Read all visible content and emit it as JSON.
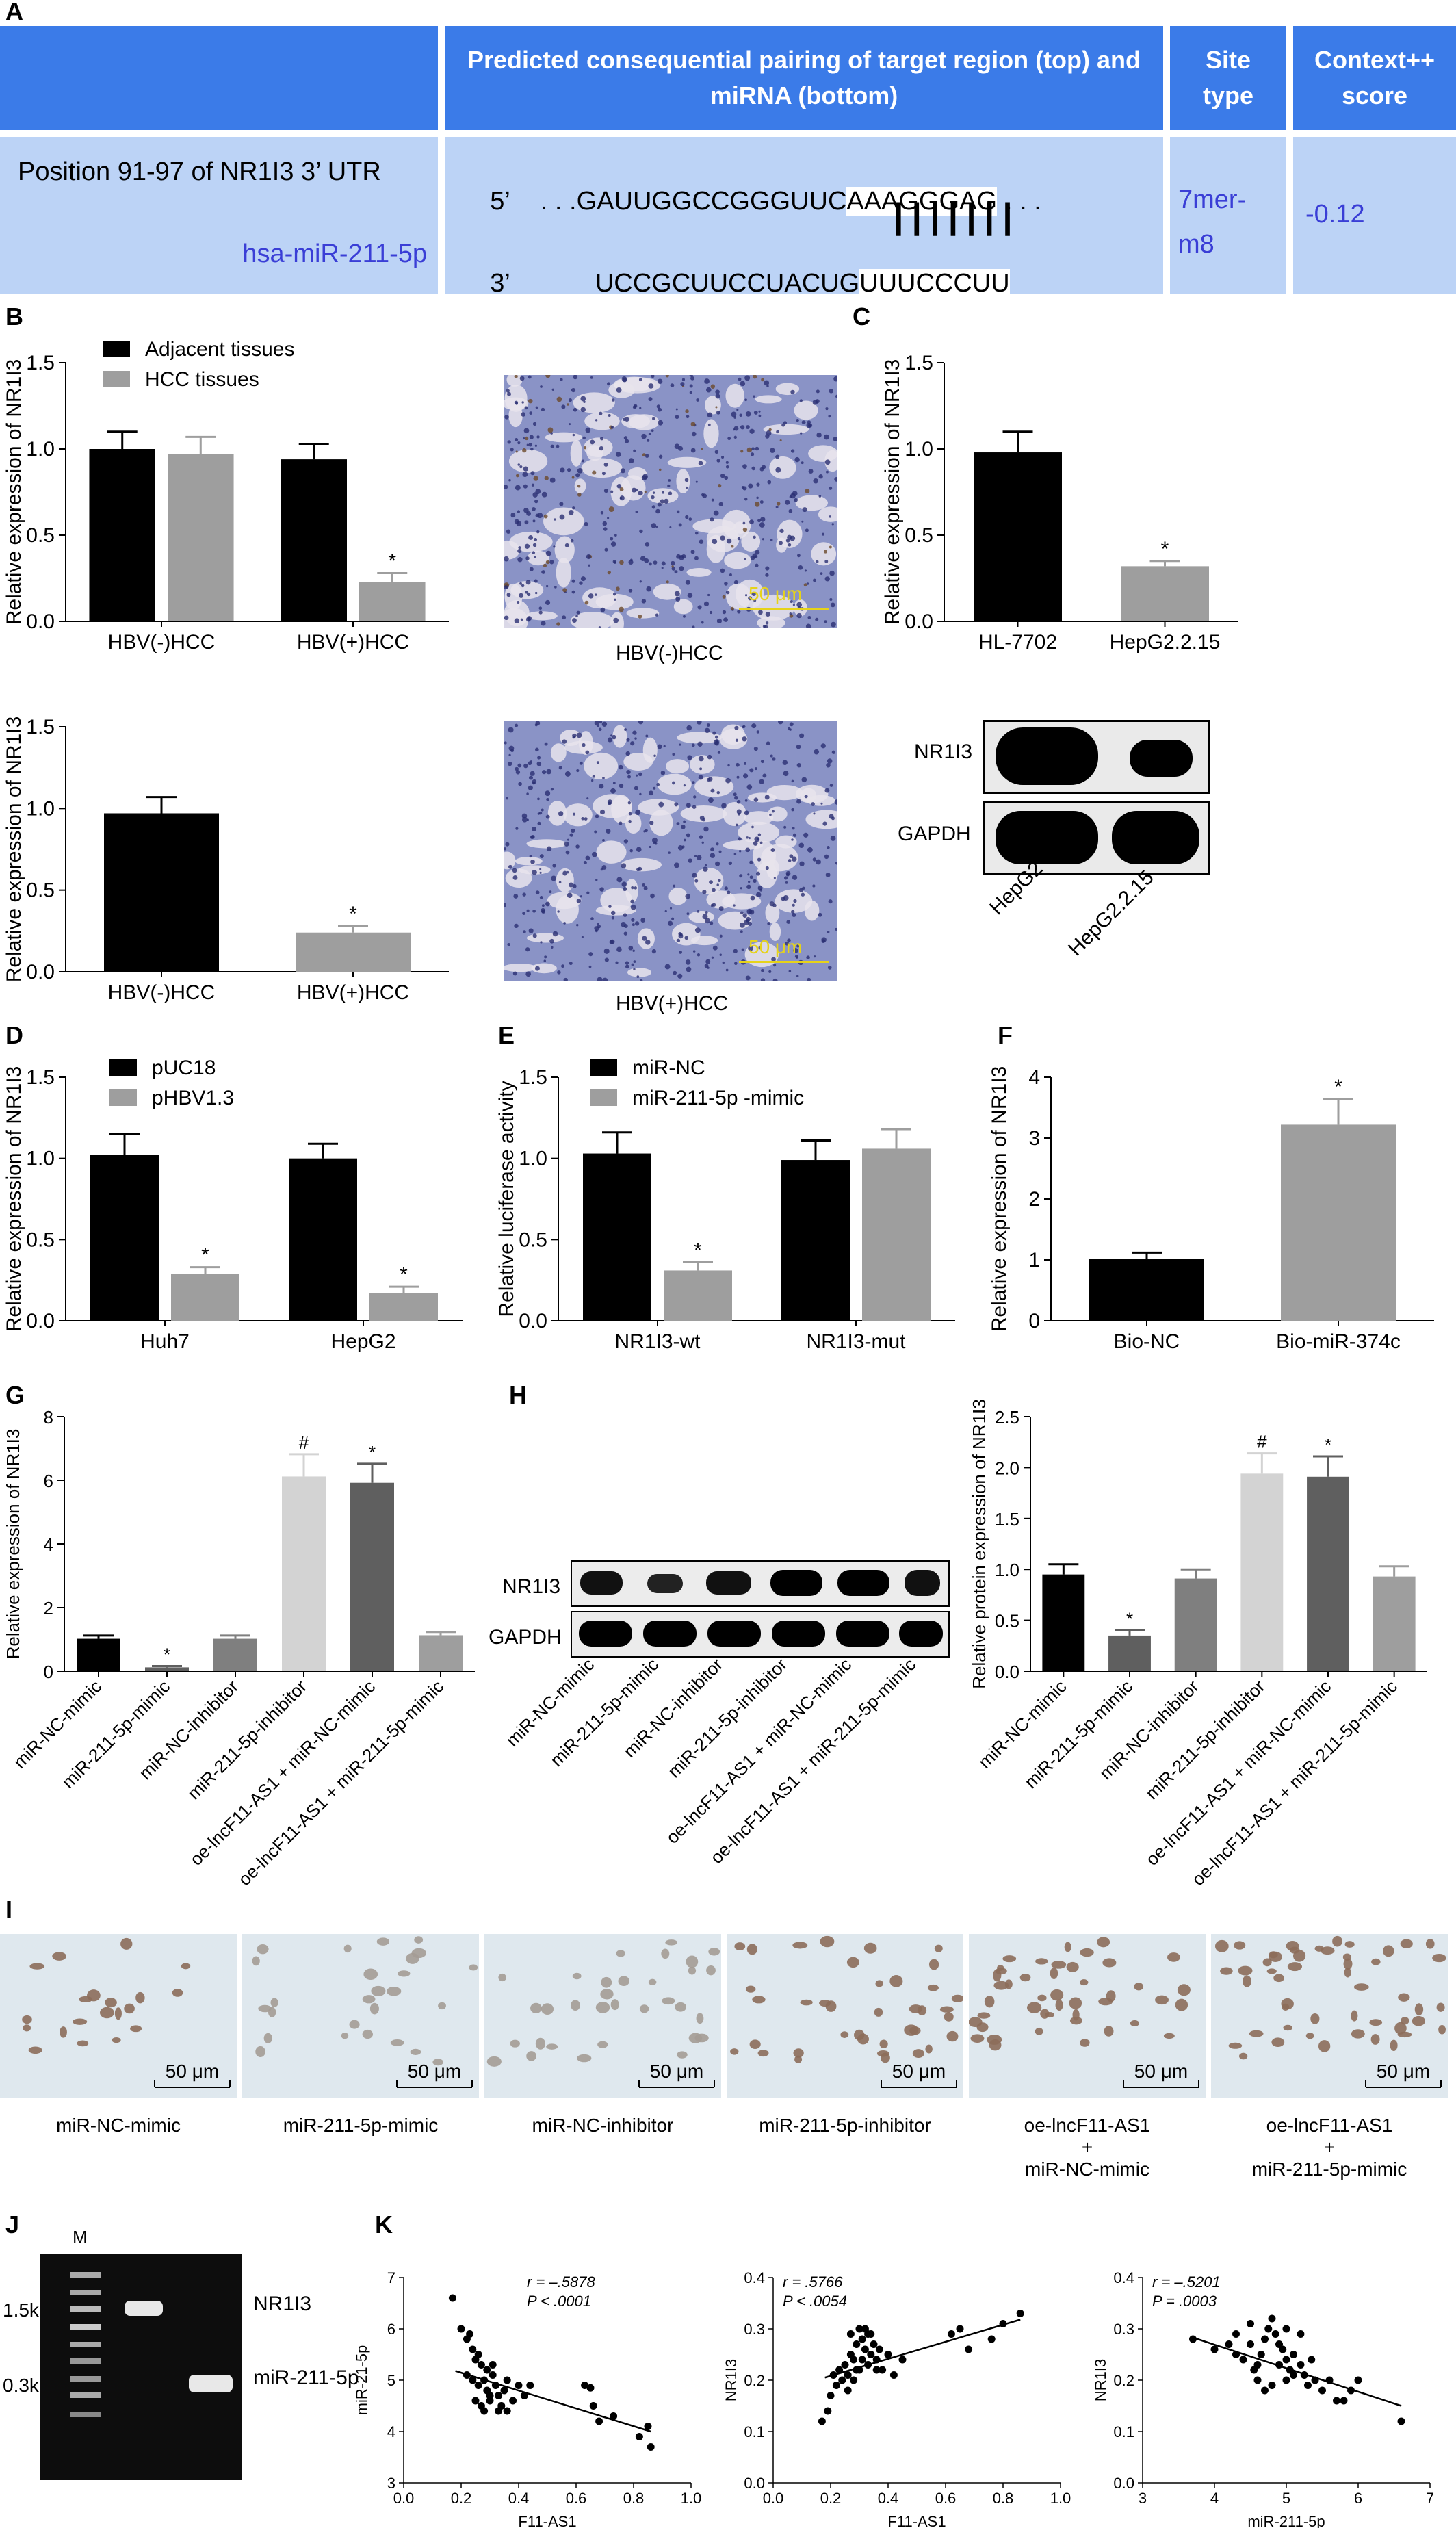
{
  "panel_letters": {
    "A": "A",
    "B": "B",
    "C": "C",
    "D": "D",
    "E": "E",
    "F": "F",
    "G": "G",
    "H": "H",
    "I": "I",
    "J": "J",
    "K": "K"
  },
  "table": {
    "headers": [
      "Predicted consequential pairing of target region (top) and miRNA (bottom)",
      "Site type",
      "Context++ score"
    ],
    "position_label": "Position 91-97 of NR1I3 3’ UTR",
    "mirna_label": "hsa-miR-211-5p",
    "top_prime": "5’",
    "top_seq_prefix": ". . .GAUUGGCCGGGUUC",
    "top_seq_highlight": "AAAGGGAG",
    "top_seq_suffix": ". . .",
    "pairing_bars": "|||||||",
    "bottom_prime": "3’",
    "bottom_seq_prefix": "UCCGCUUCCUACUG",
    "bottom_seq_highlight": "UUUCCCU",
    "bottom_seq_suffix": "U",
    "site_type": "7mer-m8",
    "context_score": "-0.12"
  },
  "micrographs": {
    "b_top_caption": "HBV(-)HCC",
    "b_bottom_caption": "HBV(+)HCC",
    "scale_text": "50 μm"
  },
  "western_c": {
    "bands": [
      "NR1I3",
      "GAPDH"
    ],
    "lanes": [
      "HepG2",
      "HepG2.2.15"
    ]
  },
  "western_h": {
    "bands": [
      "NR1I3",
      "GAPDH"
    ]
  },
  "panel_i": {
    "captions": [
      [
        "miR-NC-mimic"
      ],
      [
        "miR-211-5p-mimic"
      ],
      [
        "miR-NC-inhibitor"
      ],
      [
        "miR-211-5p-inhibitor"
      ],
      [
        "oe-lncF11-AS1",
        "+",
        "miR-NC-mimic"
      ],
      [
        "oe-lncF11-AS1",
        "+",
        "miR-211-5p-mimic"
      ]
    ],
    "scale_text": "50 μm"
  },
  "panel_j": {
    "marker": "M",
    "ladder": [
      "1.5k",
      "0.3k"
    ],
    "bands": [
      "NR1I3",
      "miR-211-5p"
    ]
  },
  "colors": {
    "black": "#000000",
    "gray": "#9e9e9e",
    "light": "#d3d3d3",
    "dark": "#5f5f5f",
    "mid": "#7f7f7f",
    "header_blue": "#3b7be8",
    "cell_blue": "#bcd3f6",
    "text_blue": "#3a3ed6"
  },
  "chart_data": [
    {
      "id": "B1",
      "type": "bar",
      "categories": [
        "HBV(-)HCC",
        "HBV(+)HCC"
      ],
      "ylabel": "Relative expression of NR1I3",
      "ylim": [
        0,
        1.5
      ],
      "yticks": [
        "0.0",
        "0.5",
        "1.0",
        "1.5"
      ],
      "series": [
        {
          "name": "Adjacent tissues",
          "color": "#000000",
          "values": [
            1.0,
            0.94
          ],
          "errors": [
            0.1,
            0.09
          ],
          "stars": [
            "",
            ""
          ]
        },
        {
          "name": "HCC tissues",
          "color": "#9e9e9e",
          "values": [
            0.97,
            0.23
          ],
          "errors": [
            0.1,
            0.05
          ],
          "stars": [
            "",
            "*"
          ]
        }
      ]
    },
    {
      "id": "B2",
      "type": "bar",
      "categories": [
        "HBV(-)HCC",
        "HBV(+)HCC"
      ],
      "ylabel": "Relative expression of NR1I3",
      "ylim": [
        0,
        1.5
      ],
      "yticks": [
        "0.0",
        "0.5",
        "1.0",
        "1.5"
      ],
      "series": [
        {
          "color": "#000000",
          "values": [
            0.97,
            null
          ],
          "errors": [
            0.1,
            null
          ],
          "stars": [
            "",
            ""
          ]
        },
        {
          "color": "#9e9e9e",
          "values": [
            null,
            0.24
          ],
          "errors": [
            null,
            0.04
          ],
          "stars": [
            "",
            "*"
          ]
        }
      ]
    },
    {
      "id": "C",
      "type": "bar",
      "categories": [
        "HL-7702",
        "HepG2.2.15"
      ],
      "ylabel": "Relative expression of NR1I3",
      "ylim": [
        0,
        1.5
      ],
      "yticks": [
        "0.0",
        "0.5",
        "1.0",
        "1.5"
      ],
      "series": [
        {
          "color": "#000000",
          "values": [
            0.98,
            null
          ],
          "errors": [
            0.12,
            null
          ],
          "stars": [
            "",
            ""
          ]
        },
        {
          "color": "#9e9e9e",
          "values": [
            null,
            0.32
          ],
          "errors": [
            null,
            0.03
          ],
          "stars": [
            "",
            "*"
          ]
        }
      ]
    },
    {
      "id": "D",
      "type": "bar",
      "categories": [
        "Huh7",
        "HepG2"
      ],
      "ylabel": "Relative expression of NR1I3",
      "ylim": [
        0,
        1.5
      ],
      "yticks": [
        "0.0",
        "0.5",
        "1.0",
        "1.5"
      ],
      "series": [
        {
          "name": "pUC18",
          "color": "#000000",
          "values": [
            1.02,
            1.0
          ],
          "errors": [
            0.13,
            0.09
          ],
          "stars": [
            "",
            ""
          ]
        },
        {
          "name": "pHBV1.3",
          "color": "#9e9e9e",
          "values": [
            0.29,
            0.17
          ],
          "errors": [
            0.04,
            0.04
          ],
          "stars": [
            "*",
            "*"
          ]
        }
      ]
    },
    {
      "id": "E",
      "type": "bar",
      "categories": [
        "NR1I3-wt",
        "NR1I3-mut"
      ],
      "ylabel": "Relative luciferase activity",
      "ylim": [
        0,
        1.5
      ],
      "yticks": [
        "0.0",
        "0.5",
        "1.0",
        "1.5"
      ],
      "series": [
        {
          "name": "miR-NC",
          "color": "#000000",
          "values": [
            1.03,
            0.99
          ],
          "errors": [
            0.13,
            0.12
          ],
          "stars": [
            "",
            ""
          ]
        },
        {
          "name": "miR-211-5p -mimic",
          "color": "#9e9e9e",
          "values": [
            0.31,
            1.06
          ],
          "errors": [
            0.05,
            0.12
          ],
          "stars": [
            "*",
            ""
          ]
        }
      ]
    },
    {
      "id": "F",
      "type": "bar",
      "categories": [
        "Bio-NC",
        "Bio-miR-374c"
      ],
      "ylabel": "Relative expression of NR1I3",
      "ylim": [
        0,
        4
      ],
      "yticks": [
        "0",
        "1",
        "2",
        "3",
        "4"
      ],
      "series": [
        {
          "color": "#000000",
          "values": [
            1.02,
            null
          ],
          "errors": [
            0.1,
            null
          ],
          "stars": [
            "",
            ""
          ]
        },
        {
          "color": "#9e9e9e",
          "values": [
            null,
            3.22
          ],
          "errors": [
            null,
            0.42
          ],
          "stars": [
            "",
            "*"
          ]
        }
      ]
    },
    {
      "id": "G",
      "type": "bar",
      "categories": [
        "miR-NC-mimic",
        "miR-211-5p-mimic",
        "miR-NC-inhibitor",
        "miR-211-5p-inhibitor",
        "oe-lncF11-AS1 + miR-NC-mimic",
        "oe-lncF11-AS1 + miR-211-5p-mimic"
      ],
      "ylabel": "Relative expression of NR1I3",
      "ylim": [
        0,
        8
      ],
      "yticks": [
        "0",
        "2",
        "4",
        "6",
        "8"
      ],
      "values": [
        1.02,
        0.12,
        1.02,
        6.12,
        5.92,
        1.13
      ],
      "errors": [
        0.1,
        0.04,
        0.1,
        0.7,
        0.6,
        0.1
      ],
      "colors": [
        "#000000",
        "#5f5f5f",
        "#7f7f7f",
        "#d3d3d3",
        "#5f5f5f",
        "#9e9e9e"
      ],
      "stars": [
        "",
        "*",
        "",
        "#",
        "*",
        ""
      ]
    },
    {
      "id": "H",
      "type": "bar",
      "categories": [
        "miR-NC-mimic",
        "miR-211-5p-mimic",
        "miR-NC-inhibitor",
        "miR-211-5p-inhibitor",
        "oe-lncF11-AS1 + miR-NC-mimic",
        "oe-lncF11-AS1 + miR-211-5p-mimic"
      ],
      "ylabel": "Relative protein expression of NR1I3",
      "ylim": [
        0,
        2.5
      ],
      "yticks": [
        "0.0",
        "0.5",
        "1.0",
        "1.5",
        "2.0",
        "2.5"
      ],
      "values": [
        0.95,
        0.35,
        0.91,
        1.94,
        1.91,
        0.93
      ],
      "errors": [
        0.1,
        0.05,
        0.09,
        0.2,
        0.2,
        0.1
      ],
      "colors": [
        "#000000",
        "#5f5f5f",
        "#7f7f7f",
        "#d3d3d3",
        "#5f5f5f",
        "#9e9e9e"
      ],
      "stars": [
        "",
        "*",
        "",
        "#",
        "*",
        ""
      ]
    },
    {
      "id": "K1",
      "type": "scatter",
      "xlabel": "F11-AS1",
      "ylabel": "miR-21-5p",
      "xlim": [
        0,
        1
      ],
      "ylim": [
        3,
        7
      ],
      "xticks": [
        "0.0",
        "0.2",
        "0.4",
        "0.6",
        "0.8",
        "1.0"
      ],
      "yticks": [
        "3",
        "4",
        "5",
        "6",
        "7"
      ],
      "stat_r": "r = –.5878",
      "stat_p": "P < .0001",
      "fit": [
        [
          0.18,
          5.18
        ],
        [
          0.86,
          4.0
        ]
      ],
      "points": [
        [
          0.17,
          6.6
        ],
        [
          0.2,
          6.0
        ],
        [
          0.22,
          5.8
        ],
        [
          0.23,
          5.9
        ],
        [
          0.24,
          5.6
        ],
        [
          0.25,
          5.4
        ],
        [
          0.26,
          5.5
        ],
        [
          0.27,
          5.3
        ],
        [
          0.22,
          5.1
        ],
        [
          0.24,
          5.0
        ],
        [
          0.26,
          4.9
        ],
        [
          0.28,
          5.0
        ],
        [
          0.29,
          4.8
        ],
        [
          0.3,
          4.7
        ],
        [
          0.31,
          5.1
        ],
        [
          0.3,
          4.6
        ],
        [
          0.32,
          4.9
        ],
        [
          0.33,
          4.7
        ],
        [
          0.34,
          4.5
        ],
        [
          0.28,
          4.4
        ],
        [
          0.25,
          4.6
        ],
        [
          0.27,
          4.5
        ],
        [
          0.35,
          4.8
        ],
        [
          0.36,
          5.0
        ],
        [
          0.38,
          4.6
        ],
        [
          0.4,
          4.9
        ],
        [
          0.42,
          4.7
        ],
        [
          0.44,
          4.9
        ],
        [
          0.31,
          5.3
        ],
        [
          0.29,
          5.2
        ],
        [
          0.33,
          4.4
        ],
        [
          0.36,
          4.4
        ],
        [
          0.63,
          4.9
        ],
        [
          0.65,
          4.85
        ],
        [
          0.66,
          4.5
        ],
        [
          0.68,
          4.2
        ],
        [
          0.73,
          4.3
        ],
        [
          0.82,
          3.9
        ],
        [
          0.85,
          4.1
        ],
        [
          0.86,
          3.7
        ]
      ]
    },
    {
      "id": "K2",
      "type": "scatter",
      "xlabel": "F11-AS1",
      "ylabel": "NR1I3",
      "xlim": [
        0,
        1
      ],
      "ylim": [
        0,
        0.4
      ],
      "xticks": [
        "0.0",
        "0.2",
        "0.4",
        "0.6",
        "0.8",
        "1.0"
      ],
      "yticks": [
        "0.0",
        "0.1",
        "0.2",
        "0.3",
        "0.4"
      ],
      "stat_r": "r = .5766",
      "stat_p": "P < .0054",
      "fit": [
        [
          0.18,
          0.205
        ],
        [
          0.86,
          0.318
        ]
      ],
      "points": [
        [
          0.17,
          0.12
        ],
        [
          0.19,
          0.14
        ],
        [
          0.2,
          0.17
        ],
        [
          0.21,
          0.21
        ],
        [
          0.22,
          0.19
        ],
        [
          0.23,
          0.22
        ],
        [
          0.24,
          0.2
        ],
        [
          0.25,
          0.23
        ],
        [
          0.26,
          0.21
        ],
        [
          0.27,
          0.25
        ],
        [
          0.28,
          0.24
        ],
        [
          0.29,
          0.27
        ],
        [
          0.3,
          0.3
        ],
        [
          0.31,
          0.28
        ],
        [
          0.32,
          0.26
        ],
        [
          0.33,
          0.29
        ],
        [
          0.3,
          0.22
        ],
        [
          0.28,
          0.2
        ],
        [
          0.26,
          0.18
        ],
        [
          0.29,
          0.22
        ],
        [
          0.31,
          0.24
        ],
        [
          0.33,
          0.23
        ],
        [
          0.34,
          0.25
        ],
        [
          0.35,
          0.27
        ],
        [
          0.36,
          0.24
        ],
        [
          0.37,
          0.26
        ],
        [
          0.38,
          0.22
        ],
        [
          0.4,
          0.25
        ],
        [
          0.42,
          0.21
        ],
        [
          0.45,
          0.24
        ],
        [
          0.27,
          0.29
        ],
        [
          0.32,
          0.3
        ],
        [
          0.34,
          0.29
        ],
        [
          0.36,
          0.22
        ],
        [
          0.62,
          0.29
        ],
        [
          0.65,
          0.3
        ],
        [
          0.68,
          0.26
        ],
        [
          0.76,
          0.28
        ],
        [
          0.8,
          0.31
        ],
        [
          0.86,
          0.33
        ]
      ]
    },
    {
      "id": "K3",
      "type": "scatter",
      "xlabel": "miR-211-5p",
      "ylabel": "NR1I3",
      "xlim": [
        3,
        7
      ],
      "ylim": [
        0,
        0.4
      ],
      "xticks": [
        "3",
        "4",
        "5",
        "6",
        "7"
      ],
      "yticks": [
        "0.0",
        "0.1",
        "0.2",
        "0.3",
        "0.4"
      ],
      "stat_r": "r = –.5201",
      "stat_p": "P  = .0003",
      "fit": [
        [
          3.7,
          0.283
        ],
        [
          6.6,
          0.15
        ]
      ],
      "points": [
        [
          3.7,
          0.28
        ],
        [
          4.0,
          0.26
        ],
        [
          4.2,
          0.27
        ],
        [
          4.3,
          0.25
        ],
        [
          4.4,
          0.24
        ],
        [
          4.5,
          0.27
        ],
        [
          4.55,
          0.22
        ],
        [
          4.6,
          0.23
        ],
        [
          4.65,
          0.25
        ],
        [
          4.7,
          0.28
        ],
        [
          4.75,
          0.3
        ],
        [
          4.8,
          0.32
        ],
        [
          4.85,
          0.29
        ],
        [
          4.9,
          0.27
        ],
        [
          4.95,
          0.26
        ],
        [
          5.0,
          0.24
        ],
        [
          5.05,
          0.22
        ],
        [
          5.1,
          0.21
        ],
        [
          4.6,
          0.2
        ],
        [
          4.7,
          0.18
        ],
        [
          4.8,
          0.19
        ],
        [
          4.9,
          0.23
        ],
        [
          5.0,
          0.2
        ],
        [
          5.1,
          0.25
        ],
        [
          5.2,
          0.23
        ],
        [
          5.25,
          0.21
        ],
        [
          5.3,
          0.19
        ],
        [
          5.35,
          0.24
        ],
        [
          5.4,
          0.2
        ],
        [
          5.5,
          0.18
        ],
        [
          5.6,
          0.2
        ],
        [
          5.7,
          0.16
        ],
        [
          5.8,
          0.16
        ],
        [
          5.9,
          0.18
        ],
        [
          6.0,
          0.2
        ],
        [
          4.5,
          0.31
        ],
        [
          5.0,
          0.3
        ],
        [
          5.2,
          0.29
        ],
        [
          4.3,
          0.29
        ],
        [
          6.6,
          0.12
        ]
      ]
    }
  ]
}
